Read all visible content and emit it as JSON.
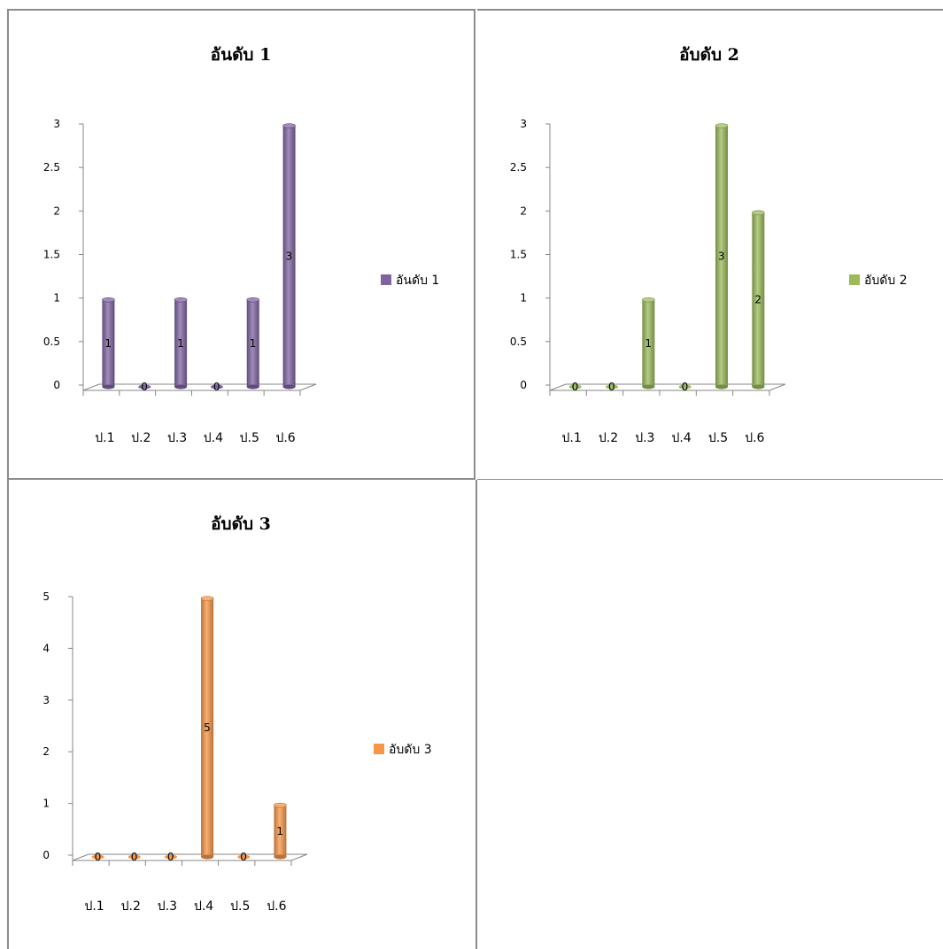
{
  "chart_data": [
    {
      "type": "bar",
      "title": "อันดับ 1",
      "categories": [
        "ป.1",
        "ป.2",
        "ป.3",
        "ป.4",
        "ป.5",
        "ป.6"
      ],
      "series": [
        {
          "name": "อันดับ 1",
          "values": [
            1,
            0,
            1,
            0,
            1,
            3
          ],
          "color": "#8064a2"
        }
      ],
      "yticks": [
        "0",
        "0.5",
        "1",
        "1.5",
        "2",
        "2.5",
        "3"
      ],
      "ylim": [
        0,
        3
      ],
      "legend": "right",
      "grid": false
    },
    {
      "type": "bar",
      "title": "อับดับ 2",
      "categories": [
        "ป.1",
        "ป.2",
        "ป.3",
        "ป.4",
        "ป.5",
        "ป.6"
      ],
      "series": [
        {
          "name": "อับดับ 2",
          "values": [
            0,
            0,
            1,
            0,
            3,
            2
          ],
          "color": "#9bbb59"
        }
      ],
      "yticks": [
        "0",
        "0.5",
        "1",
        "1.5",
        "2",
        "2.5",
        "3"
      ],
      "ylim": [
        0,
        3
      ],
      "legend": "right",
      "grid": false
    },
    {
      "type": "bar",
      "title": "อับดับ 3",
      "categories": [
        "ป.1",
        "ป.2",
        "ป.3",
        "ป.4",
        "ป.5",
        "ป.6"
      ],
      "series": [
        {
          "name": "อับดับ 3",
          "values": [
            0,
            0,
            0,
            5,
            0,
            1
          ],
          "color": "#f79646"
        }
      ],
      "yticks": [
        "0",
        "1",
        "2",
        "3",
        "4",
        "5"
      ],
      "ylim": [
        0,
        5
      ],
      "legend": "right",
      "grid": false
    }
  ]
}
